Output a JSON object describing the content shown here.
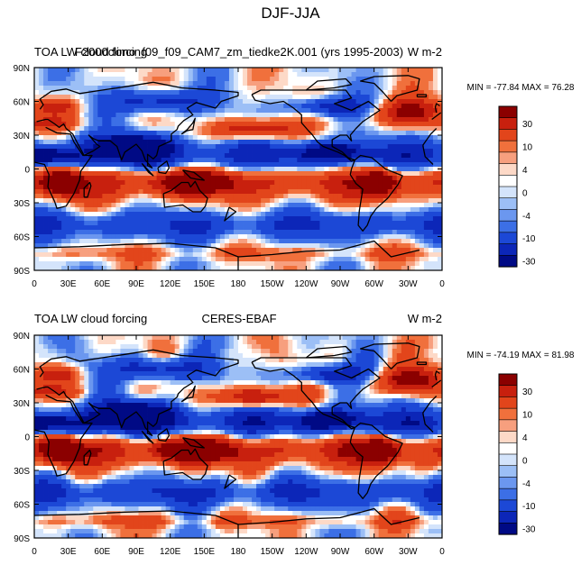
{
  "title": "DJF-JJA",
  "chart_data": [
    {
      "type": "heatmap",
      "left_title": "TOA LW cloud forcing",
      "center_title": "F2000climo_f09_f09_CAM7_zm_tiedke2K.001 (yrs 1995-2003)",
      "right_title": "W m-2",
      "stats_text": "MIN = -77.84 MAX =  76.28",
      "min": -77.84,
      "max": 76.28,
      "x_ticks": [
        "0",
        "30E",
        "60E",
        "90E",
        "120E",
        "150E",
        "180",
        "150W",
        "120W",
        "90W",
        "60W",
        "30W",
        "0"
      ],
      "y_ticks": [
        "90N",
        "60N",
        "30N",
        "0",
        "30S",
        "60S",
        "90S"
      ],
      "colorbar_labels": [
        "30",
        "10",
        "4",
        "0",
        "-4",
        "-10",
        "-30"
      ],
      "colorbar_colors": [
        "#8b0000",
        "#c8200e",
        "#e2451b",
        "#f0703c",
        "#f79f7e",
        "#fdd9c7",
        "#ffffff",
        "#d4e4fb",
        "#9cbff6",
        "#6b97ef",
        "#3c6fe6",
        "#1c48d6",
        "#0c26b8",
        "#000a85"
      ]
    },
    {
      "type": "heatmap",
      "left_title": "TOA LW cloud forcing",
      "center_title": "CERES-EBAF",
      "right_title": "W m-2",
      "stats_text": "MIN = -74.19 MAX =  81.98",
      "min": -74.19,
      "max": 81.98,
      "x_ticks": [
        "0",
        "30E",
        "60E",
        "90E",
        "120E",
        "150E",
        "180",
        "150W",
        "120W",
        "90W",
        "60W",
        "30W",
        "0"
      ],
      "y_ticks": [
        "90N",
        "60N",
        "30N",
        "0",
        "30S",
        "60S",
        "90S"
      ],
      "colorbar_labels": [
        "30",
        "10",
        "4",
        "0",
        "-4",
        "-10",
        "-30"
      ],
      "colorbar_colors": [
        "#8b0000",
        "#c8200e",
        "#e2451b",
        "#f0703c",
        "#f79f7e",
        "#fdd9c7",
        "#ffffff",
        "#d4e4fb",
        "#9cbff6",
        "#6b97ef",
        "#3c6fe6",
        "#1c48d6",
        "#0c26b8",
        "#000a85"
      ]
    }
  ]
}
